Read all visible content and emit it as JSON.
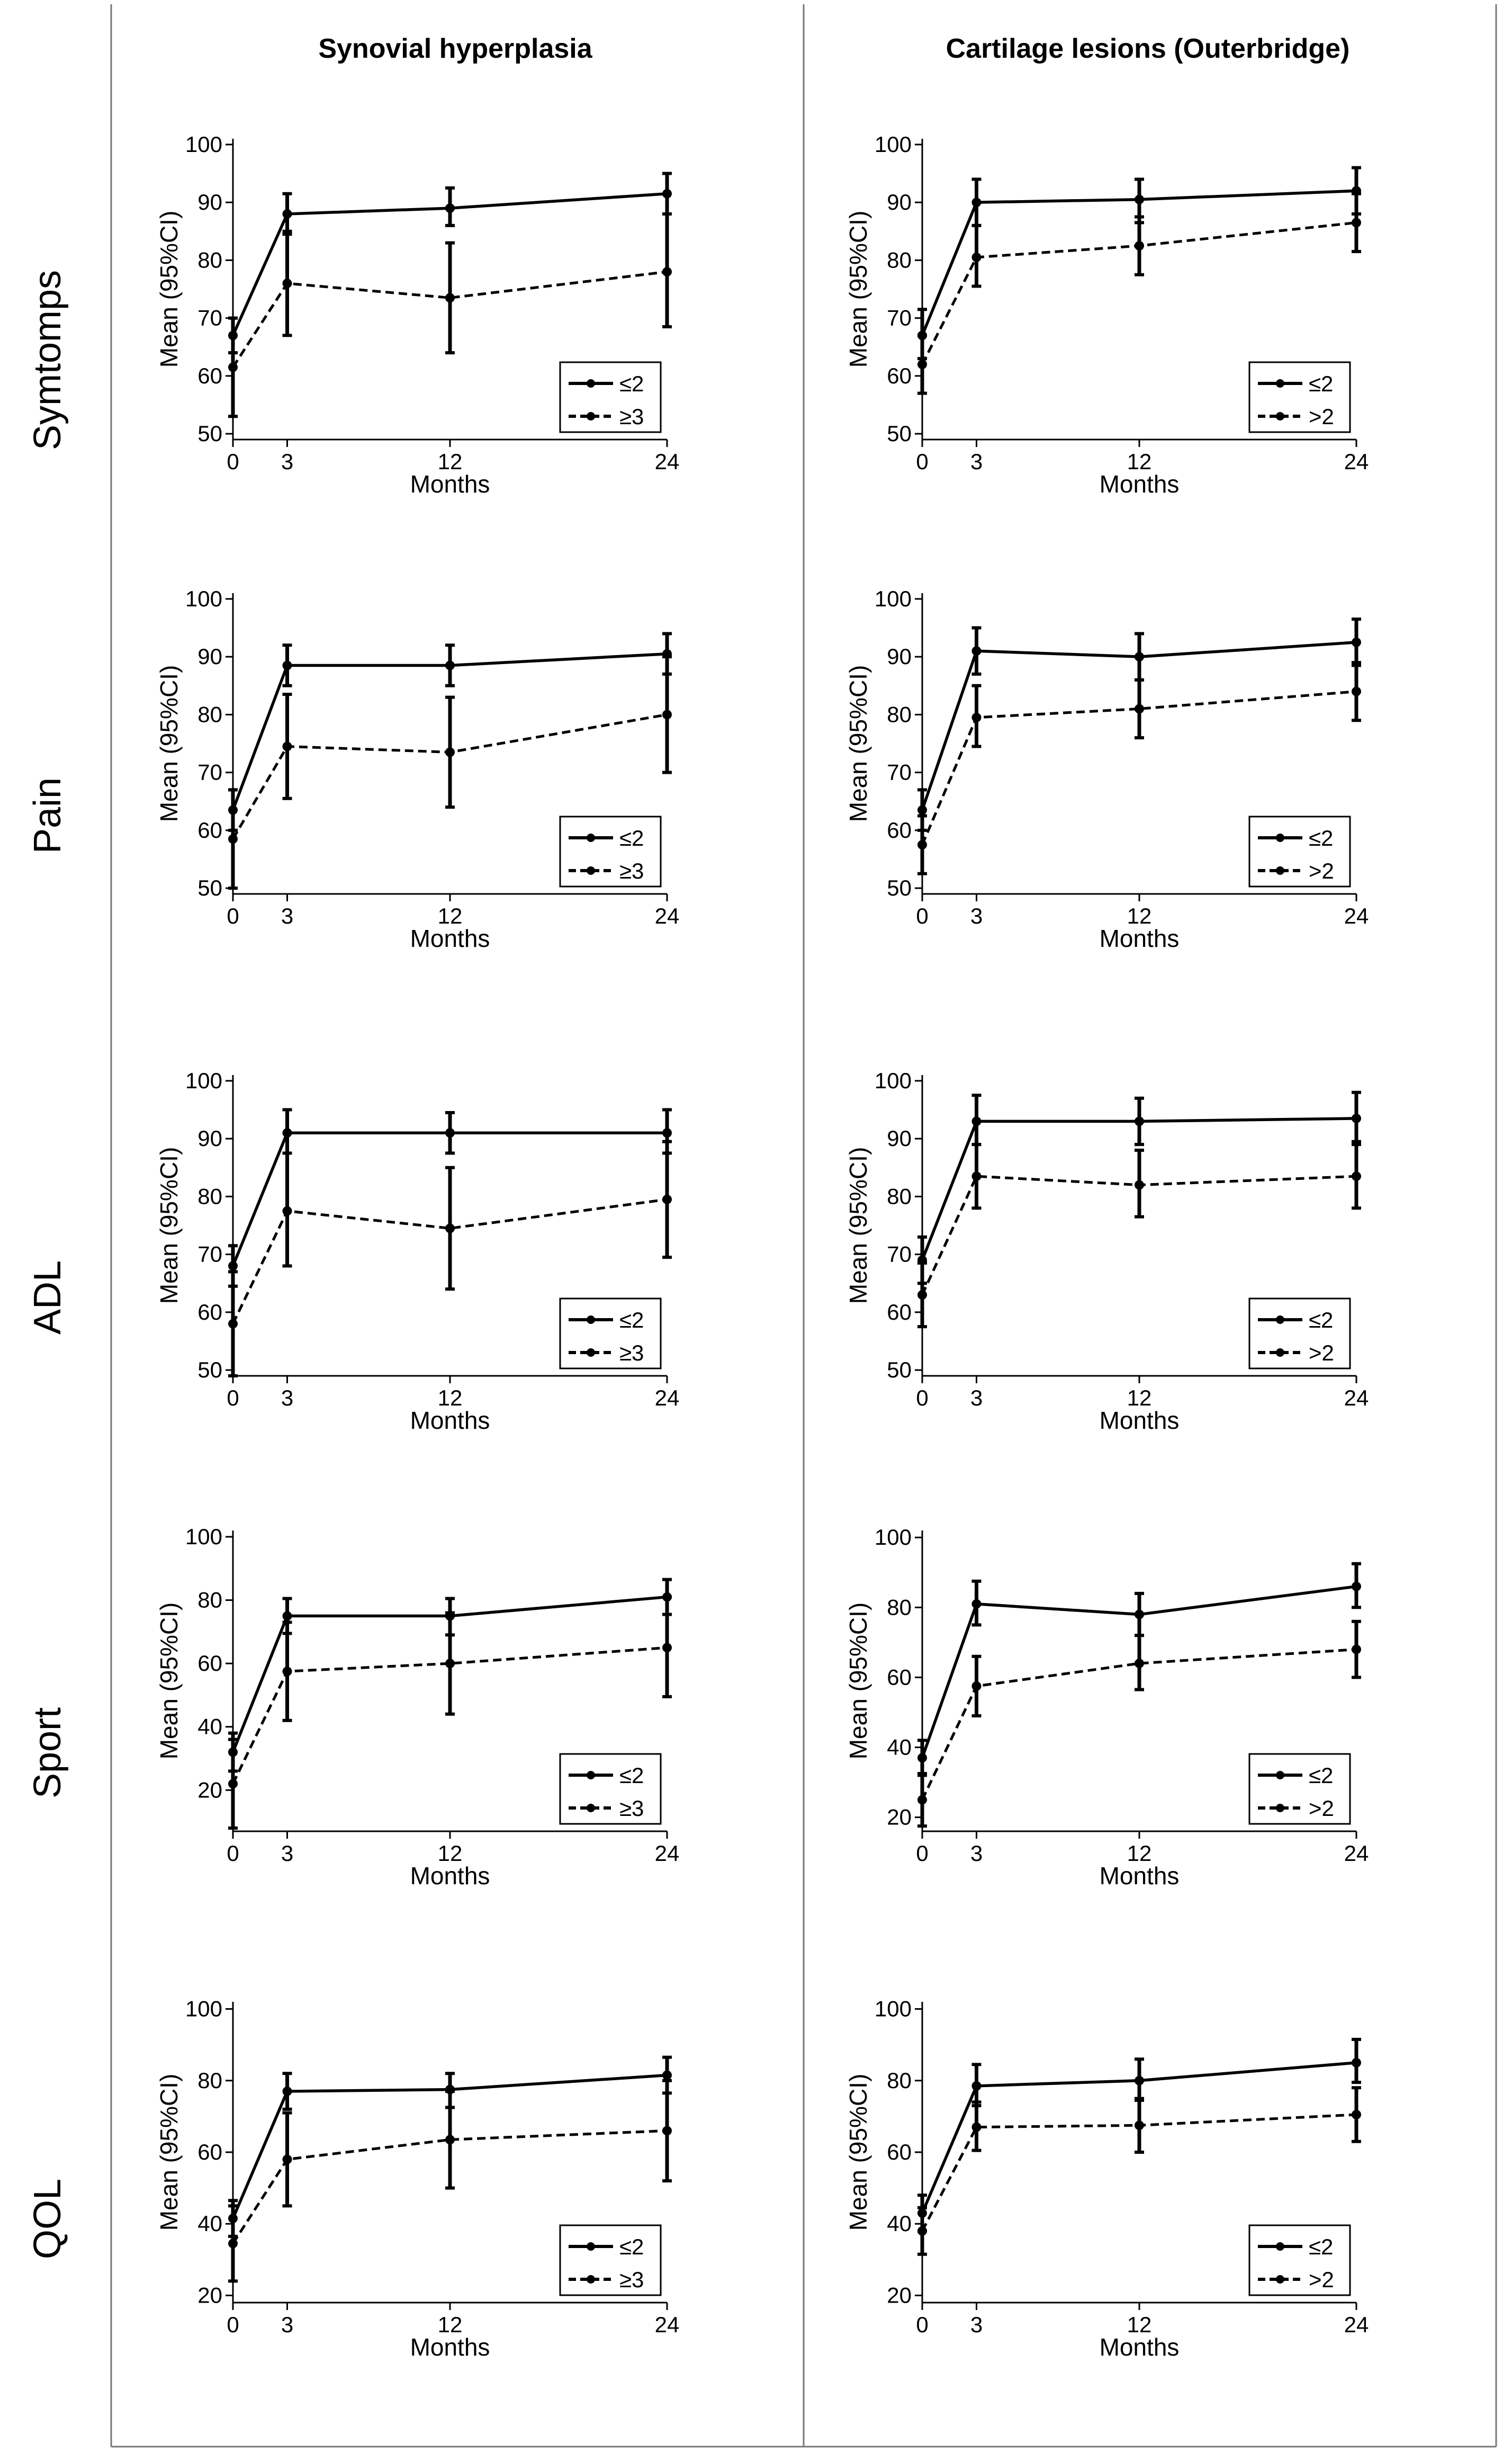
{
  "columns": [
    "Synovial hyperplasia",
    "Cartilage lesions (Outerbridge)"
  ],
  "rows": [
    "Symtomps",
    "Pain",
    "ADL",
    "Sport",
    "QOL"
  ],
  "chart_data": [
    {
      "type": "line",
      "panel": "Symtomps / Synovial hyperplasia",
      "x": [
        0,
        3,
        12,
        24
      ],
      "xticks": [
        "0",
        "3",
        "12",
        "24"
      ],
      "xlabel": "Months",
      "ylabel": "Mean (95%CI)",
      "ylim": [
        49,
        101
      ],
      "yticks": [
        50,
        60,
        70,
        80,
        90,
        100
      ],
      "series": [
        {
          "name": "≤2",
          "style": "solid",
          "values": [
            67,
            88,
            89,
            91.5
          ],
          "ci_low": [
            64,
            84.5,
            86,
            88
          ],
          "ci_high": [
            70,
            91.5,
            92.5,
            95
          ]
        },
        {
          "name": "≥3",
          "style": "dashed",
          "values": [
            61.5,
            76,
            73.5,
            78
          ],
          "ci_low": [
            53,
            67,
            64,
            68.5
          ],
          "ci_high": [
            70,
            85,
            83,
            88
          ]
        }
      ]
    },
    {
      "type": "line",
      "panel": "Symtomps / Cartilage lesions (Outerbridge)",
      "x": [
        0,
        3,
        12,
        24
      ],
      "xticks": [
        "0",
        "3",
        "12",
        "24"
      ],
      "xlabel": "Months",
      "ylabel": "Mean (95%CI)",
      "ylim": [
        49,
        101
      ],
      "yticks": [
        50,
        60,
        70,
        80,
        90,
        100
      ],
      "series": [
        {
          "name": "≤2",
          "style": "solid",
          "values": [
            67,
            90,
            90.5,
            92
          ],
          "ci_low": [
            63,
            86,
            86.5,
            88
          ],
          "ci_high": [
            71.5,
            94,
            94,
            96
          ]
        },
        {
          "name": ">2",
          "style": "dashed",
          "values": [
            62,
            80.5,
            82.5,
            86.5
          ],
          "ci_low": [
            57,
            75.5,
            77.5,
            81.5
          ],
          "ci_high": [
            67,
            86,
            87.5,
            91.5
          ]
        }
      ]
    },
    {
      "type": "line",
      "panel": "Pain / Synovial hyperplasia",
      "x": [
        0,
        3,
        12,
        24
      ],
      "xticks": [
        "0",
        "3",
        "12",
        "24"
      ],
      "xlabel": "Months",
      "ylabel": "Mean (95%CI)",
      "ylim": [
        49,
        101
      ],
      "yticks": [
        50,
        60,
        70,
        80,
        90,
        100
      ],
      "series": [
        {
          "name": "≤2",
          "style": "solid",
          "values": [
            63.5,
            88.5,
            88.5,
            90.5
          ],
          "ci_low": [
            60,
            85,
            85,
            87
          ],
          "ci_high": [
            67,
            92,
            92,
            94
          ]
        },
        {
          "name": "≥3",
          "style": "dashed",
          "values": [
            58.5,
            74.5,
            73.5,
            80
          ],
          "ci_low": [
            50,
            65.5,
            64,
            70
          ],
          "ci_high": [
            67,
            83.5,
            83,
            90
          ]
        }
      ]
    },
    {
      "type": "line",
      "panel": "Pain / Cartilage lesions (Outerbridge)",
      "x": [
        0,
        3,
        12,
        24
      ],
      "xticks": [
        "0",
        "3",
        "12",
        "24"
      ],
      "xlabel": "Months",
      "ylabel": "Mean (95%CI)",
      "ylim": [
        49,
        101
      ],
      "yticks": [
        50,
        60,
        70,
        80,
        90,
        100
      ],
      "series": [
        {
          "name": "≤2",
          "style": "solid",
          "values": [
            63.5,
            91,
            90,
            92.5
          ],
          "ci_low": [
            60,
            87,
            86,
            88.5
          ],
          "ci_high": [
            67,
            95,
            94,
            96.5
          ]
        },
        {
          "name": ">2",
          "style": "dashed",
          "values": [
            57.5,
            79.5,
            81,
            84
          ],
          "ci_low": [
            52.5,
            74.5,
            76,
            79
          ],
          "ci_high": [
            62.5,
            85,
            86,
            89
          ]
        }
      ]
    },
    {
      "type": "line",
      "panel": "ADL / Synovial hyperplasia",
      "x": [
        0,
        3,
        12,
        24
      ],
      "xticks": [
        "0",
        "3",
        "12",
        "24"
      ],
      "xlabel": "Months",
      "ylabel": "Mean (95%CI)",
      "ylim": [
        49,
        101
      ],
      "yticks": [
        50,
        60,
        70,
        80,
        90,
        100
      ],
      "series": [
        {
          "name": "≤2",
          "style": "solid",
          "values": [
            68,
            91,
            91,
            91
          ],
          "ci_low": [
            64.5,
            87.5,
            87.5,
            87.5
          ],
          "ci_high": [
            71.5,
            95,
            94.5,
            95
          ]
        },
        {
          "name": "≥3",
          "style": "dashed",
          "values": [
            58,
            77.5,
            74.5,
            79.5
          ],
          "ci_low": [
            49,
            68,
            64,
            69.5
          ],
          "ci_high": [
            67,
            87.5,
            85,
            89.5
          ]
        }
      ]
    },
    {
      "type": "line",
      "panel": "ADL / Cartilage lesions (Outerbridge)",
      "x": [
        0,
        3,
        12,
        24
      ],
      "xticks": [
        "0",
        "3",
        "12",
        "24"
      ],
      "xlabel": "Months",
      "ylabel": "Mean (95%CI)",
      "ylim": [
        49,
        101
      ],
      "yticks": [
        50,
        60,
        70,
        80,
        90,
        100
      ],
      "series": [
        {
          "name": "≤2",
          "style": "solid",
          "values": [
            69,
            93,
            93,
            93.5
          ],
          "ci_low": [
            65,
            89,
            89,
            89.5
          ],
          "ci_high": [
            73,
            97.5,
            97,
            98
          ]
        },
        {
          "name": ">2",
          "style": "dashed",
          "values": [
            63,
            83.5,
            82,
            83.5
          ],
          "ci_low": [
            57.5,
            78,
            76.5,
            78
          ],
          "ci_high": [
            68.5,
            89,
            88,
            89
          ]
        }
      ]
    },
    {
      "type": "line",
      "panel": "Sport / Synovial hyperplasia",
      "x": [
        0,
        3,
        12,
        24
      ],
      "xticks": [
        "0",
        "3",
        "12",
        "24"
      ],
      "xlabel": "Months",
      "ylabel": "Mean (95%CI)",
      "ylim": [
        7,
        102
      ],
      "yticks": [
        20,
        40,
        60,
        80,
        100
      ],
      "series": [
        {
          "name": "≤2",
          "style": "solid",
          "values": [
            32,
            75,
            75,
            81
          ],
          "ci_low": [
            26,
            69.5,
            69,
            75.5
          ],
          "ci_high": [
            38,
            80.5,
            80.5,
            86.5
          ]
        },
        {
          "name": "≥3",
          "style": "dashed",
          "values": [
            22,
            57.5,
            60,
            65
          ],
          "ci_low": [
            8,
            42,
            44,
            49.5
          ],
          "ci_high": [
            36,
            73,
            76,
            81
          ]
        }
      ]
    },
    {
      "type": "line",
      "panel": "Sport / Cartilage lesions (Outerbridge)",
      "x": [
        0,
        3,
        12,
        24
      ],
      "xticks": [
        "0",
        "3",
        "12",
        "24"
      ],
      "xlabel": "Months",
      "ylabel": "Mean (95%CI)",
      "ylim": [
        16,
        102
      ],
      "yticks": [
        20,
        40,
        60,
        80,
        100
      ],
      "series": [
        {
          "name": "≤2",
          "style": "solid",
          "values": [
            37,
            81,
            78,
            86
          ],
          "ci_low": [
            32,
            75,
            72,
            80
          ],
          "ci_high": [
            42,
            87.5,
            84,
            92.5
          ]
        },
        {
          "name": ">2",
          "style": "dashed",
          "values": [
            25,
            57.5,
            64,
            68
          ],
          "ci_low": [
            17.5,
            49,
            56.5,
            60
          ],
          "ci_high": [
            32.5,
            66,
            72,
            76
          ]
        }
      ]
    },
    {
      "type": "line",
      "panel": "QOL / Synovial hyperplasia",
      "x": [
        0,
        3,
        12,
        24
      ],
      "xticks": [
        "0",
        "3",
        "12",
        "24"
      ],
      "xlabel": "Months",
      "ylabel": "Mean (95%CI)",
      "ylim": [
        18,
        102
      ],
      "yticks": [
        20,
        40,
        60,
        80,
        100
      ],
      "series": [
        {
          "name": "≤2",
          "style": "solid",
          "values": [
            41.5,
            77,
            77.5,
            81.5
          ],
          "ci_low": [
            36.5,
            72,
            72.5,
            76.5
          ],
          "ci_high": [
            46.5,
            82,
            82,
            86.5
          ]
        },
        {
          "name": "≥3",
          "style": "dashed",
          "values": [
            34.5,
            58,
            63.5,
            66
          ],
          "ci_low": [
            24,
            45,
            50,
            52
          ],
          "ci_high": [
            45,
            71,
            77,
            80
          ]
        }
      ]
    },
    {
      "type": "line",
      "panel": "QOL / Cartilage lesions (Outerbridge)",
      "x": [
        0,
        3,
        12,
        24
      ],
      "xticks": [
        "0",
        "3",
        "12",
        "24"
      ],
      "xlabel": "Months",
      "ylabel": "Mean (95%CI)",
      "ylim": [
        18,
        102
      ],
      "yticks": [
        20,
        40,
        60,
        80,
        100
      ],
      "series": [
        {
          "name": "≤2",
          "style": "solid",
          "values": [
            43,
            78.5,
            80,
            85
          ],
          "ci_low": [
            38,
            73,
            74.5,
            79.5
          ],
          "ci_high": [
            48,
            84.5,
            86,
            91.5
          ]
        },
        {
          "name": ">2",
          "style": "dashed",
          "values": [
            38,
            67,
            67.5,
            70.5
          ],
          "ci_low": [
            31.5,
            60.5,
            60,
            63
          ],
          "ci_high": [
            44.5,
            74,
            75,
            78
          ]
        }
      ]
    }
  ]
}
